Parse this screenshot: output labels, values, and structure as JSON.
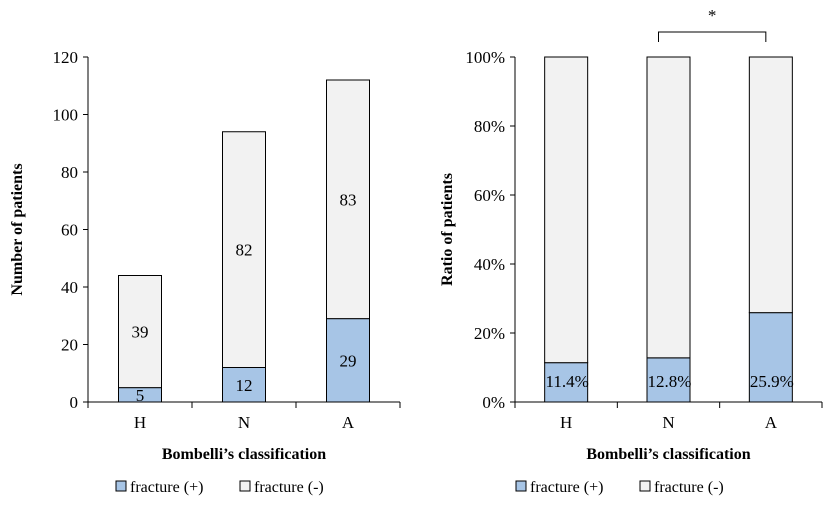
{
  "colors": {
    "fracture_pos": "#a7c5e6",
    "fracture_neg": "#f2f2f2",
    "outline": "#000000"
  },
  "chart_data": [
    {
      "type": "bar",
      "stacked": true,
      "title": "",
      "xlabel": "Bombelli’s classification",
      "ylabel": "Number of patients",
      "categories": [
        "H",
        "N",
        "A"
      ],
      "ylim": [
        0,
        120
      ],
      "yticks": [
        "0",
        "20",
        "40",
        "60",
        "80",
        "100",
        "120"
      ],
      "series": [
        {
          "name": "fracture (+)",
          "values": [
            5,
            12,
            29
          ],
          "labels": [
            "5",
            "12",
            "29"
          ]
        },
        {
          "name": "fracture (-)",
          "values": [
            39,
            82,
            83
          ],
          "labels": [
            "39",
            "82",
            "83"
          ]
        }
      ],
      "legend": {
        "position": "bottom",
        "entries": [
          "fracture (+)",
          "fracture (-)"
        ]
      }
    },
    {
      "type": "bar",
      "stacked": true,
      "title": "",
      "xlabel": "Bombelli’s classification",
      "ylabel": "Ratio of patients",
      "categories": [
        "H",
        "N",
        "A"
      ],
      "ylim": [
        0,
        100
      ],
      "yticks": [
        "0%",
        "20%",
        "40%",
        "60%",
        "80%",
        "100%"
      ],
      "series": [
        {
          "name": "fracture (+)",
          "values": [
            11.4,
            12.8,
            25.9
          ],
          "labels": [
            "11.4%",
            "12.8%",
            "25.9%"
          ]
        },
        {
          "name": "fracture (-)",
          "values": [
            88.6,
            87.2,
            74.1
          ]
        }
      ],
      "annotation": {
        "text": "*",
        "between": [
          "N",
          "A"
        ]
      },
      "legend": {
        "position": "bottom",
        "entries": [
          "fracture (+)",
          "fracture (-)"
        ]
      }
    }
  ]
}
